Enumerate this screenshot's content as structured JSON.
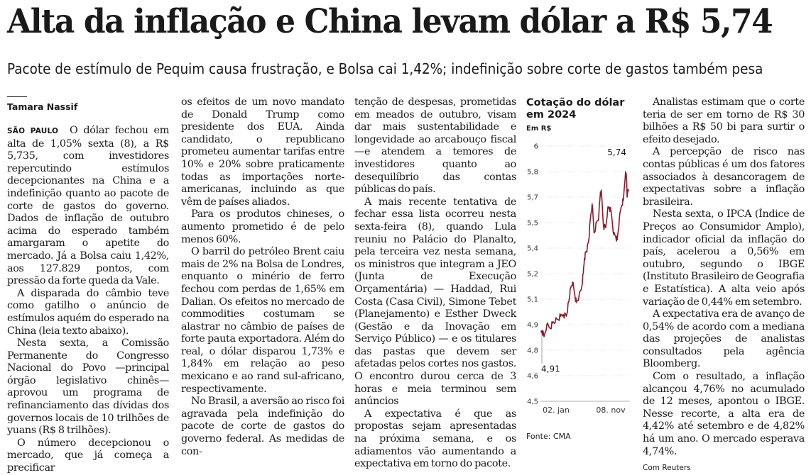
{
  "headline": "Alta da inflação e China levam dólar a R$ 5,74",
  "subheadline": "Pacote de estímulo de Pequim causa frustração, e Bolsa cai 1,42%; indefinição sobre corte de gastos também pesa",
  "author": "Tamara Nassif",
  "dateline": "SÃO PAULO",
  "col1": {
    "p1": "O dólar fechou em alta de 1,05% sexta (8), a R$ 5,735, com investidores repercutindo estímulos decepcionantes na China e a indefinição quanto ao pacote de corte de gastos do governo. Dados de inflação de outubro acima do esperado também amargaram o apetite do mercado. Já a Bolsa caiu 1,42%, aos 127.829 pontos, com pressão da forte queda da Vale.",
    "p2": "A disparada do câmbio teve como gatilho o anúncio de estímulos aquém do esperado na China (leia texto abaixo).",
    "p3": "Nesta sexta, a Comissão Permanente do Congresso Nacional do Povo —principal órgão legislativo chinês— aprovou um programa de refinanciamento das dívidas dos governos locais de 10 trilhões de yuans (R$ 8 trilhões).",
    "p4": "O número decepcionou o mercado, que já começa a precificar"
  },
  "col2": {
    "p1": "os efeitos de um novo mandato de Donald Trump como presidente dos EUA. Ainda candidato, o republicano prometeu aumentar tarifas entre 10% e 20% sobre praticamente todas as importações norte-americanas, incluindo as que vêm de países aliados.",
    "p2": "Para os produtos chineses, o aumento prometido é de pelo menos 60%.",
    "p3": "O barril do petróleo Brent caiu mais de 2% na Bolsa de Londres, enquanto o minério de ferro fechou com perdas de 1,65% em Dalian. Os efeitos no mercado de commodities costumam se alastrar no câmbio de países de forte pauta exportadora. Além do real, o dólar disparou 1,73% e 1,84% em relação ao peso mexicano e ao rand sul-africano, respectivamente.",
    "p4": "No Brasil, a aversão ao risco foi agravada pela indefinição do pacote de corte de gastos do governo federal. As medidas de con-"
  },
  "col3": {
    "p1": "tenção de despesas, prometidas em meados de outubro, visam dar mais sustentabilidade e longevidade ao arcabouço fiscal —e atendem a temores de investidores quanto ao desequilíbrio das contas públicas do país.",
    "p2": "A mais recente tentativa de fechar essa lista ocorreu nesta sexta-feira (8), quando Lula reuniu no Palácio do Planalto, pela terceira vez nesta semana, os ministros que integram a JEO (Junta de Execução Orçamentária) — Haddad, Rui Costa (Casa Civil), Simone Tebet (Planejamento) e Esther Dweck (Gestão e da Inovação em Serviço Público) — e os titulares das pastas que devem ser afetadas pelos cortes nos gastos. O encontro durou cerca de 3 horas e meia terminou sem anúncios",
    "p3": "A expectativa é que as propostas sejam apresentadas na próxima semana, e os adiamentos vão aumentando a expectativa em torno do pacote."
  },
  "col5": {
    "p1": "Analistas estimam que o corte teria de ser em torno de R$ 30 bilhões a R$ 50 bi para surtir o efeito desejado.",
    "p2": "A percepção de risco nas contas públicas é um dos fatores associados à desancoragem de expectativas sobre a inflação brasileira.",
    "p3": "Nesta sexta, o IPCA (Índice de Preços ao Consumidor Amplo), indicador oficial da inflação do país, acelerou a 0,56% em outubro, segundo o IBGE (Instituto Brasileiro de Geografia e Estatística). A alta veio após variação de 0,44% em setembro.",
    "p4": "A expectativa era de avanço de 0,54% de acordo com a mediana das projeções de analistas consultados pela agência Bloomberg.",
    "p5": "Com o resultado, a inflação alcançou 4,76% no acumulado de 12 meses, apontou o IBGE. Nesse recorte, a alta era de 4,42% até setembro e de 4,82% há um ano. O mercado esperava 4,74%.",
    "credit": "Com Reuters"
  },
  "chart_data": {
    "type": "line",
    "title": "Cotação do dólar em 2024",
    "ylabel": "Em R$",
    "ylim": [
      4.5,
      6.0
    ],
    "yticks": [
      "4,5",
      "4,6",
      "4,8",
      "4,9",
      "5,1",
      "5,2",
      "5,4",
      "5,5",
      "5,7",
      "5,8",
      "6"
    ],
    "xticks": [
      "02. jan",
      "08. nov"
    ],
    "start_label": "4,91",
    "end_label": "5,74",
    "source": "Fonte: CMA",
    "line_color": "#8b1a2b",
    "series": [
      {
        "x": [
          "2024-01-02",
          "2024-01-10",
          "2024-01-20",
          "2024-01-31",
          "2024-02-10",
          "2024-02-20",
          "2024-02-29",
          "2024-03-10",
          "2024-03-20",
          "2024-03-31",
          "2024-04-05",
          "2024-04-10",
          "2024-04-16",
          "2024-04-22",
          "2024-04-30",
          "2024-05-06",
          "2024-05-15",
          "2024-05-24",
          "2024-05-31",
          "2024-06-04",
          "2024-06-10",
          "2024-06-14",
          "2024-06-20",
          "2024-06-26",
          "2024-07-02",
          "2024-07-09",
          "2024-07-18",
          "2024-07-26",
          "2024-08-01",
          "2024-08-05",
          "2024-08-12",
          "2024-08-20",
          "2024-08-27",
          "2024-09-02",
          "2024-09-10",
          "2024-09-18",
          "2024-09-25",
          "2024-10-01",
          "2024-10-08",
          "2024-10-16",
          "2024-10-23",
          "2024-10-31",
          "2024-11-04",
          "2024-11-06",
          "2024-11-08"
        ],
        "values": [
          4.91,
          4.88,
          4.95,
          4.93,
          4.96,
          4.97,
          4.98,
          5.0,
          5.01,
          5.0,
          5.06,
          5.1,
          5.17,
          5.2,
          5.13,
          5.08,
          5.11,
          5.16,
          5.25,
          5.34,
          5.38,
          5.4,
          5.45,
          5.58,
          5.66,
          5.49,
          5.55,
          5.58,
          5.73,
          5.72,
          5.53,
          5.52,
          5.63,
          5.64,
          5.6,
          5.48,
          5.47,
          5.45,
          5.56,
          5.65,
          5.68,
          5.85,
          5.8,
          5.7,
          5.74
        ]
      }
    ]
  }
}
